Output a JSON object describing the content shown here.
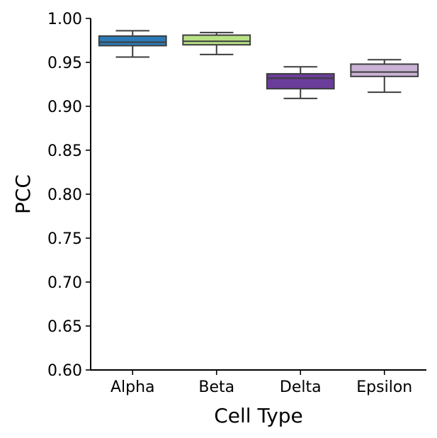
{
  "chart_data": {
    "type": "box",
    "xlabel": "Cell Type",
    "ylabel": "PCC",
    "ylim": [
      0.6,
      1.0
    ],
    "yticks": [
      "0.60",
      "0.65",
      "0.70",
      "0.75",
      "0.80",
      "0.85",
      "0.90",
      "0.95",
      "1.00"
    ],
    "categories": [
      "Alpha",
      "Beta",
      "Delta",
      "Epsilon"
    ],
    "colors": [
      "#2c7bb6",
      "#b8e186",
      "#6a3d9a",
      "#cab2d6"
    ],
    "boxes": [
      {
        "whislo": 0.956,
        "q1": 0.969,
        "med": 0.973,
        "q3": 0.98,
        "whishi": 0.986
      },
      {
        "whislo": 0.959,
        "q1": 0.97,
        "med": 0.974,
        "q3": 0.981,
        "whishi": 0.984
      },
      {
        "whislo": 0.909,
        "q1": 0.92,
        "med": 0.932,
        "q3": 0.937,
        "whishi": 0.945
      },
      {
        "whislo": 0.916,
        "q1": 0.934,
        "med": 0.939,
        "q3": 0.948,
        "whishi": 0.953
      }
    ],
    "grid": false,
    "legend": "none"
  }
}
